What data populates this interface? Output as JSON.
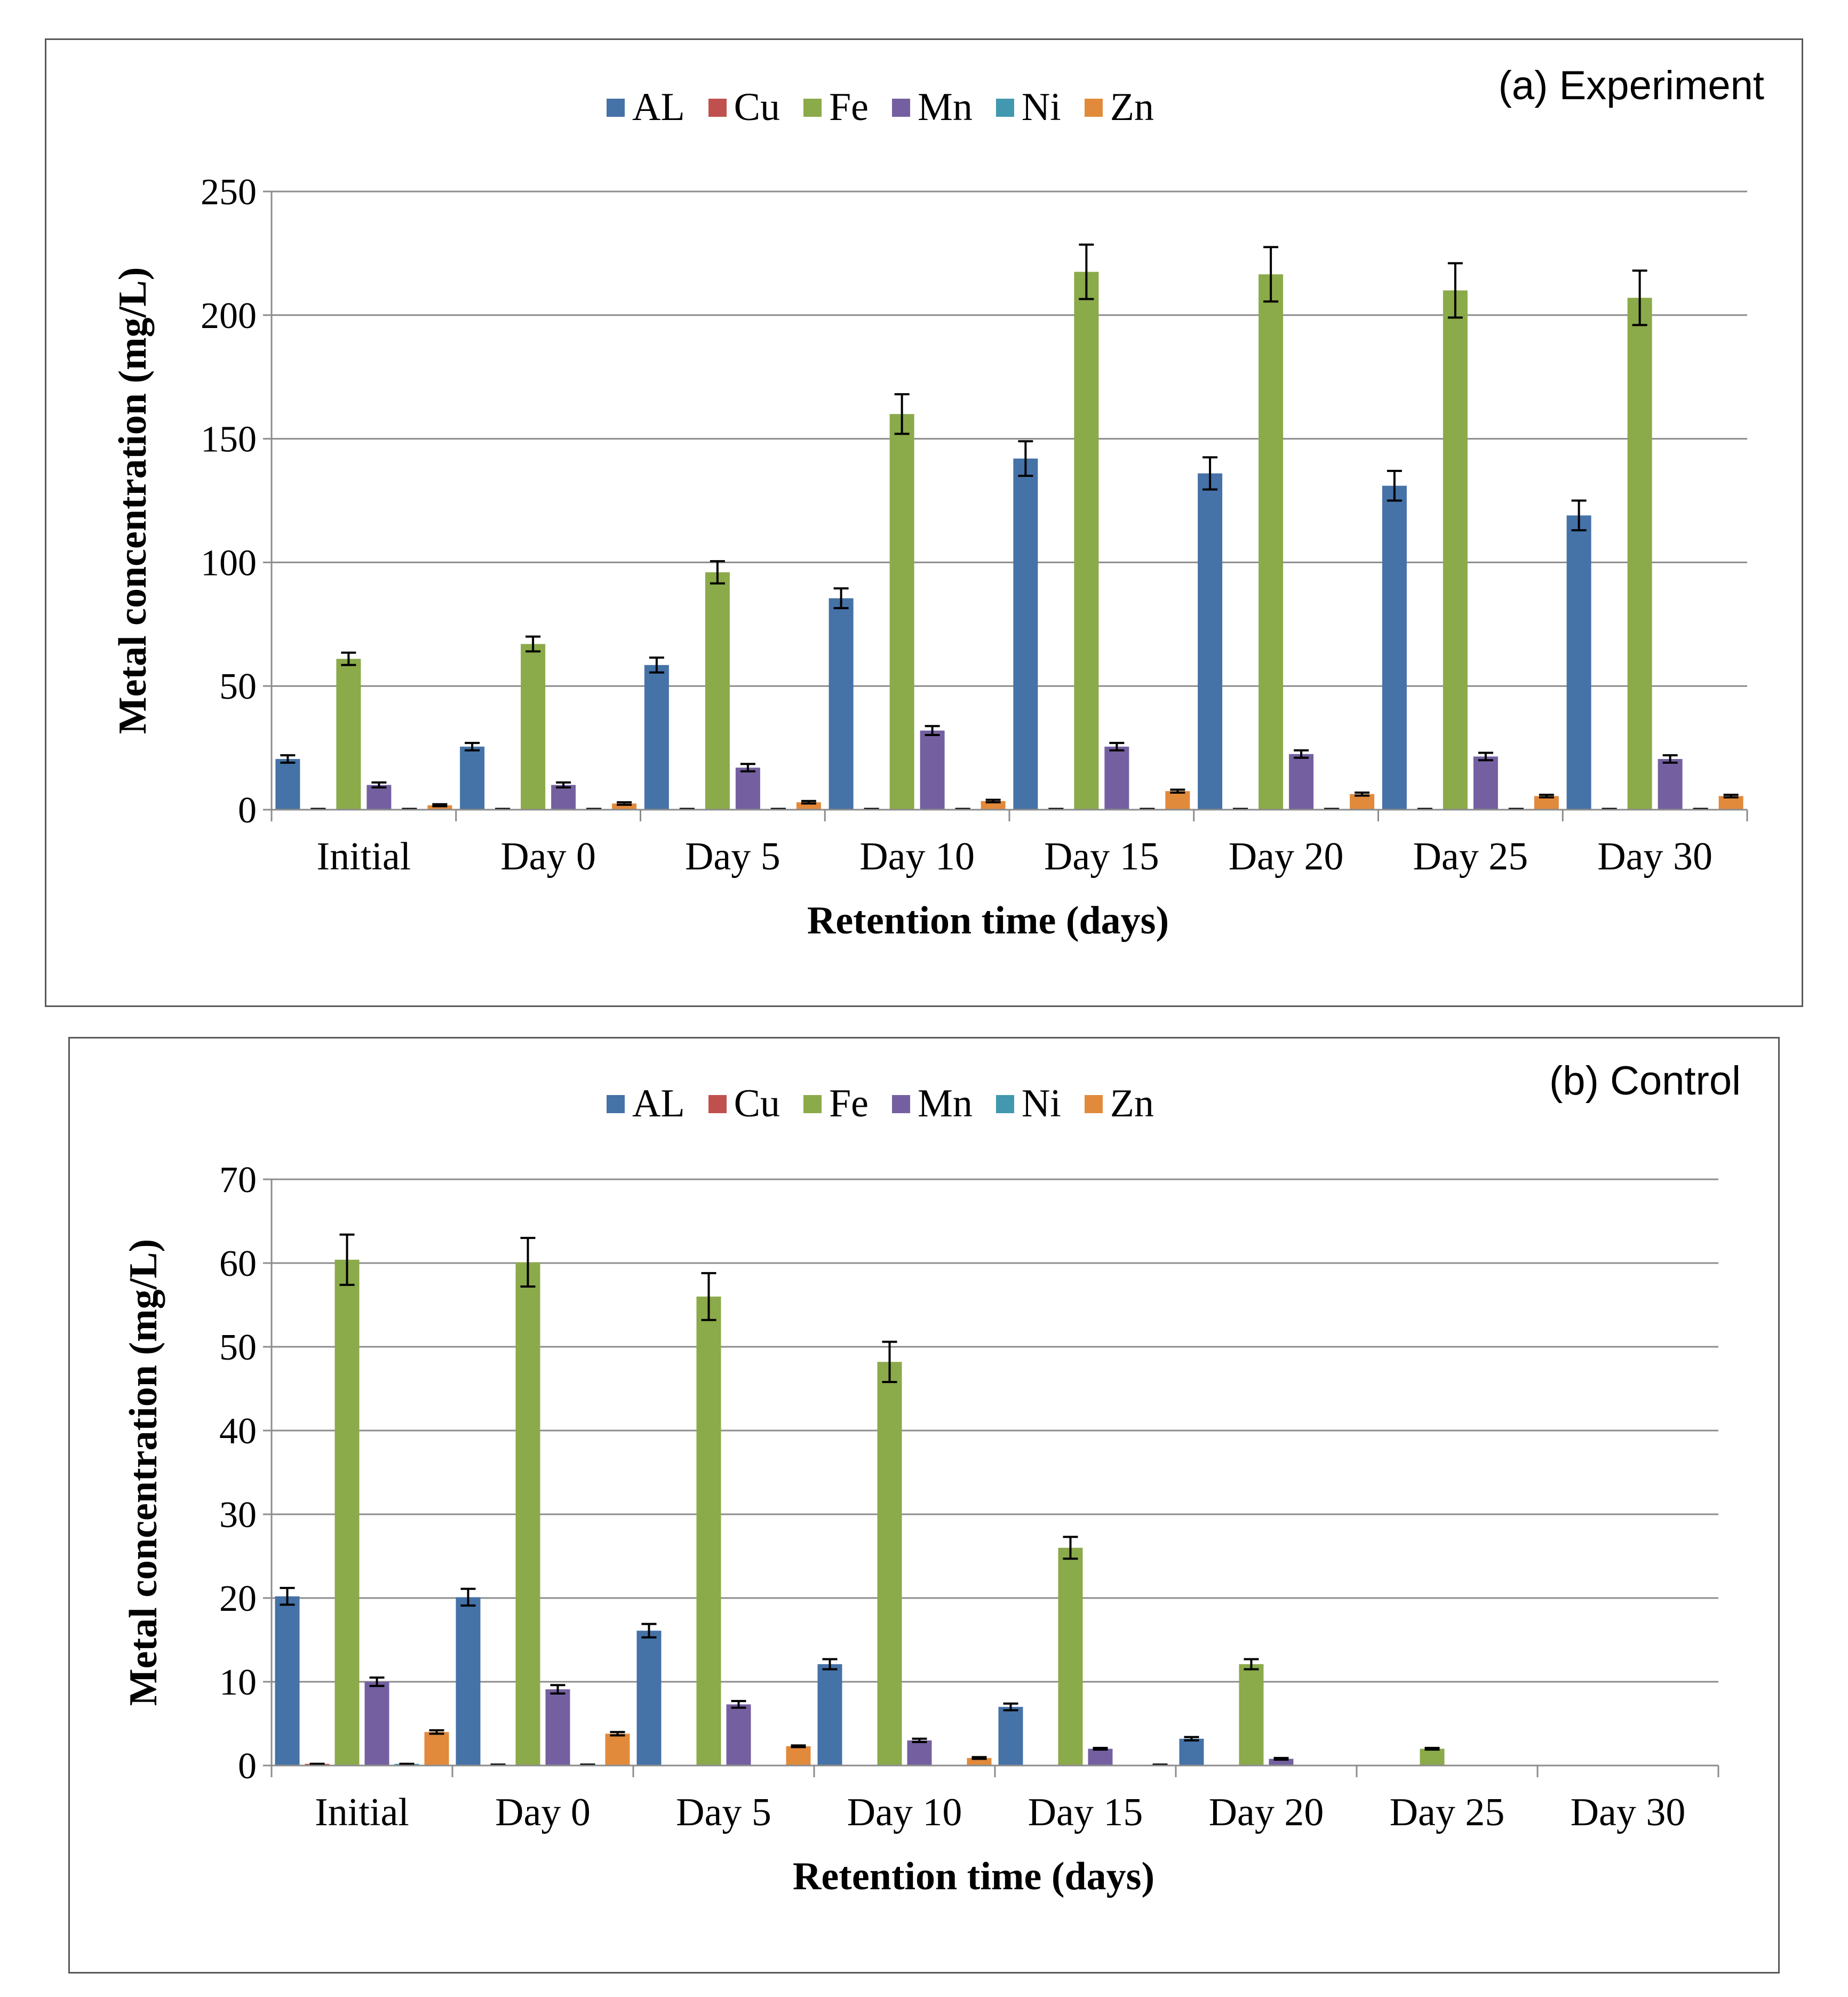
{
  "chart_data": [
    {
      "type": "bar",
      "panel_label": "(a) Experiment",
      "title": "",
      "xlabel": "Retention time (days)",
      "ylabel": "Metal concentration (mg/L)",
      "ylim": [
        0,
        250
      ],
      "yticks": [
        "0",
        "50",
        "100",
        "150",
        "200",
        "250"
      ],
      "grid": true,
      "legend_position": "top-center",
      "categories": [
        "Initial",
        "Day 0",
        "Day 5",
        "Day 10",
        "Day 15",
        "Day 20",
        "Day 25",
        "Day 30"
      ],
      "series": [
        {
          "name": "AL",
          "color": "#4572A7",
          "values": [
            20.5,
            25.5,
            58.5,
            85.5,
            142,
            136,
            131,
            119
          ],
          "errors": [
            1.5,
            1.5,
            3,
            4,
            7,
            6.5,
            6,
            6
          ]
        },
        {
          "name": "Cu",
          "color": "#C0504D",
          "values": [
            0.3,
            0.3,
            0.3,
            0.3,
            0.3,
            0.3,
            0.3,
            0.3
          ],
          "errors": [
            0,
            0,
            0,
            0,
            0,
            0,
            0,
            0
          ]
        },
        {
          "name": "Fe",
          "color": "#8BAA4A",
          "values": [
            61,
            67,
            96,
            160,
            217.5,
            216.5,
            210,
            207
          ],
          "errors": [
            2.5,
            3,
            4.5,
            8,
            11,
            11,
            11,
            11
          ]
        },
        {
          "name": "Mn",
          "color": "#7460A0",
          "values": [
            10,
            10,
            17,
            32,
            25.5,
            22.5,
            21.5,
            20.5
          ],
          "errors": [
            1,
            1,
            1.5,
            1.8,
            1.5,
            1.5,
            1.5,
            1.5
          ]
        },
        {
          "name": "Ni",
          "color": "#4198AF",
          "values": [
            0.3,
            0.3,
            0.3,
            0.3,
            0.3,
            0.3,
            0.3,
            0.3
          ],
          "errors": [
            0,
            0,
            0,
            0,
            0,
            0,
            0,
            0
          ]
        },
        {
          "name": "Zn",
          "color": "#E28A3B",
          "values": [
            1.8,
            2.5,
            3,
            3.5,
            7.5,
            6.3,
            5.5,
            5.5
          ],
          "errors": [
            0.4,
            0.5,
            0.5,
            0.5,
            0.6,
            0.6,
            0.5,
            0.5
          ]
        }
      ]
    },
    {
      "type": "bar",
      "panel_label": "(b) Control",
      "title": "",
      "xlabel": "Retention time (days)",
      "ylabel": "Metal concentration (mg/L)",
      "ylim": [
        0,
        70
      ],
      "yticks": [
        "0",
        "10",
        "20",
        "30",
        "40",
        "50",
        "60",
        "70"
      ],
      "grid": true,
      "legend_position": "top-center",
      "categories": [
        "Initial",
        "Day 0",
        "Day 5",
        "Day 10",
        "Day 15",
        "Day 20",
        "Day 25",
        "Day 30"
      ],
      "series": [
        {
          "name": "AL",
          "color": "#4572A7",
          "values": [
            20.2,
            20.1,
            16.1,
            12.1,
            7,
            3.2,
            0,
            0
          ],
          "errors": [
            1,
            1,
            0.8,
            0.6,
            0.4,
            0.2,
            0,
            0
          ]
        },
        {
          "name": "Cu",
          "color": "#C0504D",
          "values": [
            0.2,
            0.1,
            0,
            0,
            0,
            0,
            0,
            0
          ],
          "errors": [
            0,
            0,
            0,
            0,
            0,
            0,
            0,
            0
          ]
        },
        {
          "name": "Fe",
          "color": "#8BAA4A",
          "values": [
            60.4,
            60.1,
            56,
            48.2,
            26,
            12.1,
            2,
            0
          ],
          "errors": [
            3,
            2.9,
            2.8,
            2.4,
            1.3,
            0.6,
            0.1,
            0
          ]
        },
        {
          "name": "Mn",
          "color": "#7460A0",
          "values": [
            10,
            9.1,
            7.3,
            3,
            2,
            0.8,
            0,
            0
          ],
          "errors": [
            0.5,
            0.5,
            0.4,
            0.2,
            0.1,
            0.1,
            0,
            0
          ]
        },
        {
          "name": "Ni",
          "color": "#4198AF",
          "values": [
            0.2,
            0.1,
            0,
            0,
            0,
            0,
            0,
            0
          ],
          "errors": [
            0,
            0,
            0,
            0,
            0,
            0,
            0,
            0
          ]
        },
        {
          "name": "Zn",
          "color": "#E28A3B",
          "values": [
            4,
            3.8,
            2.3,
            0.9,
            0.1,
            0,
            0,
            0
          ],
          "errors": [
            0.2,
            0.2,
            0.1,
            0.1,
            0,
            0,
            0,
            0
          ]
        }
      ]
    }
  ]
}
